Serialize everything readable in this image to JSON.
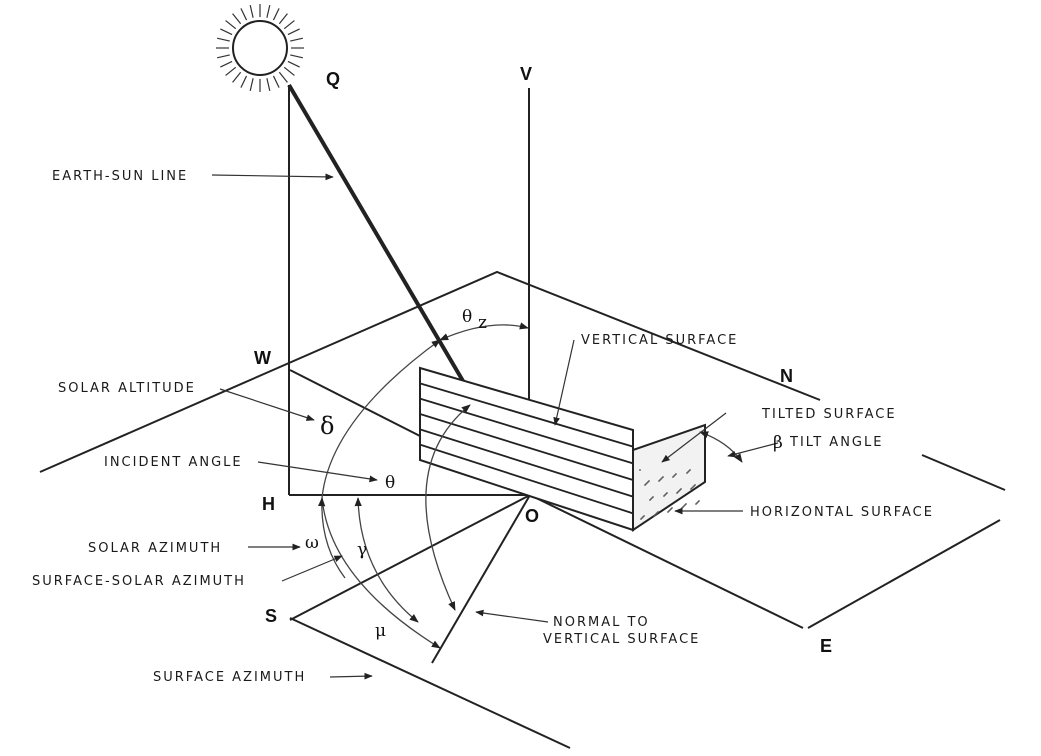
{
  "points": {
    "Q": "Q",
    "V": "V",
    "W": "W",
    "N": "N",
    "H": "H",
    "O": "O",
    "S": "S",
    "E": "E"
  },
  "labels": {
    "earth_sun_line": "EARTH-SUN  LINE",
    "vertical_surface": "VERTICAL  SURFACE",
    "solar_altitude": "SOLAR  ALTITUDE",
    "tilted_surface": "TILTED  SURFACE",
    "tilt_angle": "TILT  ANGLE",
    "incident_angle": "INCIDENT  ANGLE",
    "horizontal_surface": "HORIZONTAL  SURFACE",
    "solar_azimuth": "SOLAR  AZIMUTH",
    "surface_solar_azimuth": "SURFACE-SOLAR  AZIMUTH",
    "normal_line1": "NORMAL  TO",
    "normal_line2": "VERTICAL  SURFACE",
    "surface_azimuth": "SURFACE  AZIMUTH"
  },
  "symbols": {
    "theta_z": "θ",
    "theta_z_sub": "z",
    "delta": "δ",
    "theta": "θ",
    "beta": "β",
    "omega": "ω",
    "gamma": "γ",
    "mu": "μ"
  }
}
